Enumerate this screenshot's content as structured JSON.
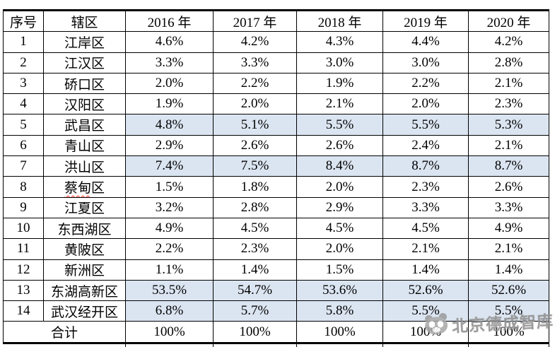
{
  "colors": {
    "highlight": "#dbe5f1",
    "border": "#000000",
    "text": "#000000",
    "squiggle": "#ff2a1a",
    "watermark": "#8d8d8d"
  },
  "table": {
    "headers": [
      "序号",
      "辖区",
      "2016 年",
      "2017 年",
      "2018 年",
      "2019 年",
      "2020 年"
    ],
    "rows": [
      {
        "no": "1",
        "district": "江岸区",
        "values": [
          "4.6%",
          "4.2%",
          "4.3%",
          "4.4%",
          "4.2%"
        ],
        "highlight": false
      },
      {
        "no": "2",
        "district": "江汉区",
        "values": [
          "3.3%",
          "3.3%",
          "3.0%",
          "3.0%",
          "2.8%"
        ],
        "highlight": false
      },
      {
        "no": "3",
        "district": "硚口区",
        "values": [
          "2.0%",
          "2.2%",
          "1.9%",
          "2.2%",
          "2.1%"
        ],
        "highlight": false
      },
      {
        "no": "4",
        "district": "汉阳区",
        "values": [
          "1.9%",
          "2.0%",
          "2.1%",
          "2.0%",
          "2.3%"
        ],
        "highlight": false
      },
      {
        "no": "5",
        "district": "武昌区",
        "values": [
          "4.8%",
          "5.1%",
          "5.5%",
          "5.5%",
          "5.3%"
        ],
        "highlight": true
      },
      {
        "no": "6",
        "district": "青山区",
        "values": [
          "2.9%",
          "2.6%",
          "2.6%",
          "2.4%",
          "2.1%"
        ],
        "highlight": false
      },
      {
        "no": "7",
        "district": "洪山区",
        "values": [
          "7.4%",
          "7.5%",
          "8.4%",
          "8.7%",
          "8.7%"
        ],
        "highlight": true
      },
      {
        "no": "8",
        "district": "蔡甸区",
        "squiggle_part": "蔡甸",
        "rest_part": "区",
        "values": [
          "1.5%",
          "1.8%",
          "2.0%",
          "2.3%",
          "2.6%"
        ],
        "highlight": false
      },
      {
        "no": "9",
        "district": "江夏区",
        "values": [
          "3.2%",
          "2.8%",
          "2.9%",
          "3.3%",
          "3.3%"
        ],
        "highlight": false
      },
      {
        "no": "10",
        "district": "东西湖区",
        "values": [
          "4.9%",
          "4.5%",
          "4.5%",
          "4.5%",
          "4.9%"
        ],
        "highlight": false
      },
      {
        "no": "11",
        "district": "黄陂区",
        "values": [
          "2.2%",
          "2.3%",
          "2.0%",
          "2.1%",
          "2.1%"
        ],
        "highlight": false
      },
      {
        "no": "12",
        "district": "新洲区",
        "values": [
          "1.1%",
          "1.4%",
          "1.5%",
          "1.4%",
          "1.4%"
        ],
        "highlight": false
      },
      {
        "no": "13",
        "district": "东湖高新区",
        "values": [
          "53.5%",
          "54.7%",
          "53.6%",
          "52.6%",
          "52.6%"
        ],
        "highlight": true
      },
      {
        "no": "14",
        "district": "武汉经开区",
        "values": [
          "6.8%",
          "5.7%",
          "5.8%",
          "5.5%",
          "5.5%"
        ],
        "highlight": true
      }
    ],
    "total_row": {
      "label": "合计",
      "values": [
        "100%",
        "100%",
        "100%",
        "100%",
        "100%"
      ]
    }
  },
  "watermark": {
    "text": "北京德成智库",
    "logo": "panda-badge-logo"
  }
}
